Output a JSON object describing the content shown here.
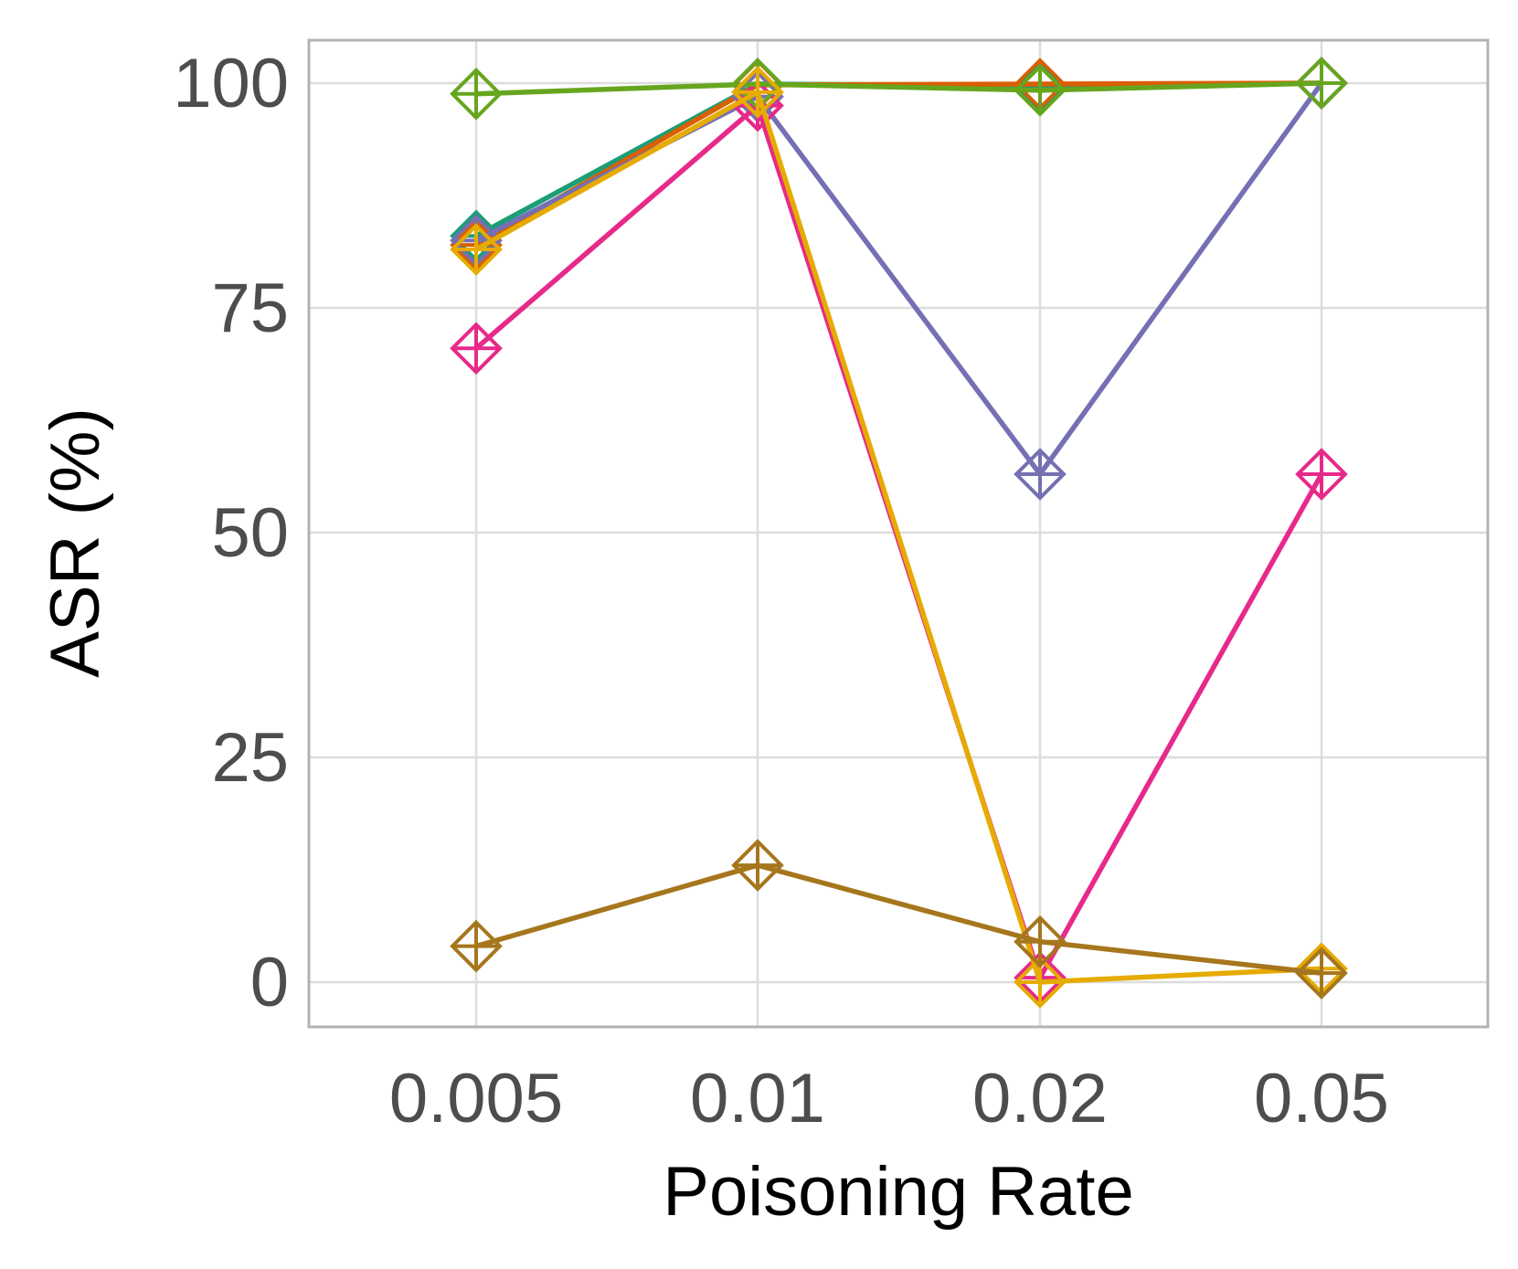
{
  "chart_data": {
    "type": "line",
    "title": "",
    "xlabel": "Poisoning Rate",
    "ylabel": "ASR (%)",
    "categories": [
      "0.005",
      "0.01",
      "0.02",
      "0.05"
    ],
    "ylim": [
      -5,
      105
    ],
    "yticks": [
      0,
      25,
      50,
      75,
      100
    ],
    "ytick_labels": [
      "0",
      "25",
      "50",
      "75",
      "100"
    ],
    "grid": true,
    "legend": "none",
    "marker": "diamond-plus",
    "series": [
      {
        "color": "#1B9E77",
        "values": [
          83.0,
          99.9,
          99.7,
          100.0
        ]
      },
      {
        "color": "#D95F02",
        "values": [
          82.0,
          99.8,
          99.9,
          100.0
        ]
      },
      {
        "color": "#7570B3",
        "values": [
          82.5,
          98.5,
          56.5,
          100.0
        ]
      },
      {
        "color": "#E7298A",
        "values": [
          70.5,
          97.5,
          0.5,
          56.5
        ]
      },
      {
        "color": "#66A61E",
        "values": [
          98.8,
          99.9,
          99.2,
          100.0
        ]
      },
      {
        "color": "#E6AB02",
        "values": [
          81.5,
          99.0,
          0.0,
          1.5
        ]
      },
      {
        "color": "#A6761D",
        "values": [
          4.0,
          13.0,
          4.5,
          1.0
        ]
      }
    ]
  }
}
